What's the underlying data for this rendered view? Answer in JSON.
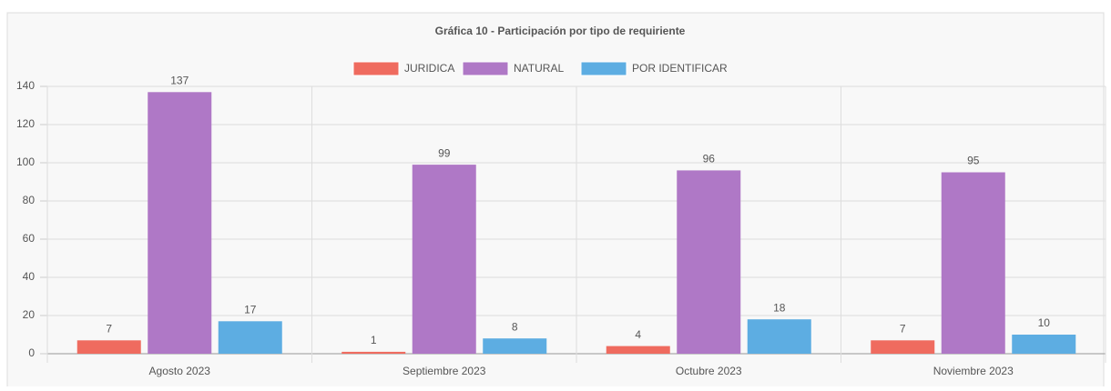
{
  "chart_data": {
    "type": "bar",
    "title": "Gráfica 10 - Participación por tipo de requiriente",
    "categories": [
      "Agosto 2023",
      "Septiembre 2023",
      "Octubre 2023",
      "Noviembre 2023"
    ],
    "series": [
      {
        "name": "JURIDICA",
        "color": "#ef6b5f",
        "values": [
          7,
          1,
          4,
          7
        ]
      },
      {
        "name": "NATURAL",
        "color": "#af78c6",
        "values": [
          137,
          99,
          96,
          95
        ]
      },
      {
        "name": "POR IDENTIFICAR",
        "color": "#5dade2",
        "values": [
          17,
          8,
          18,
          10
        ]
      }
    ],
    "ylim": [
      0,
      140
    ],
    "yticks": [
      0,
      20,
      40,
      60,
      80,
      100,
      120,
      140
    ],
    "grid": true,
    "legend": "top"
  }
}
